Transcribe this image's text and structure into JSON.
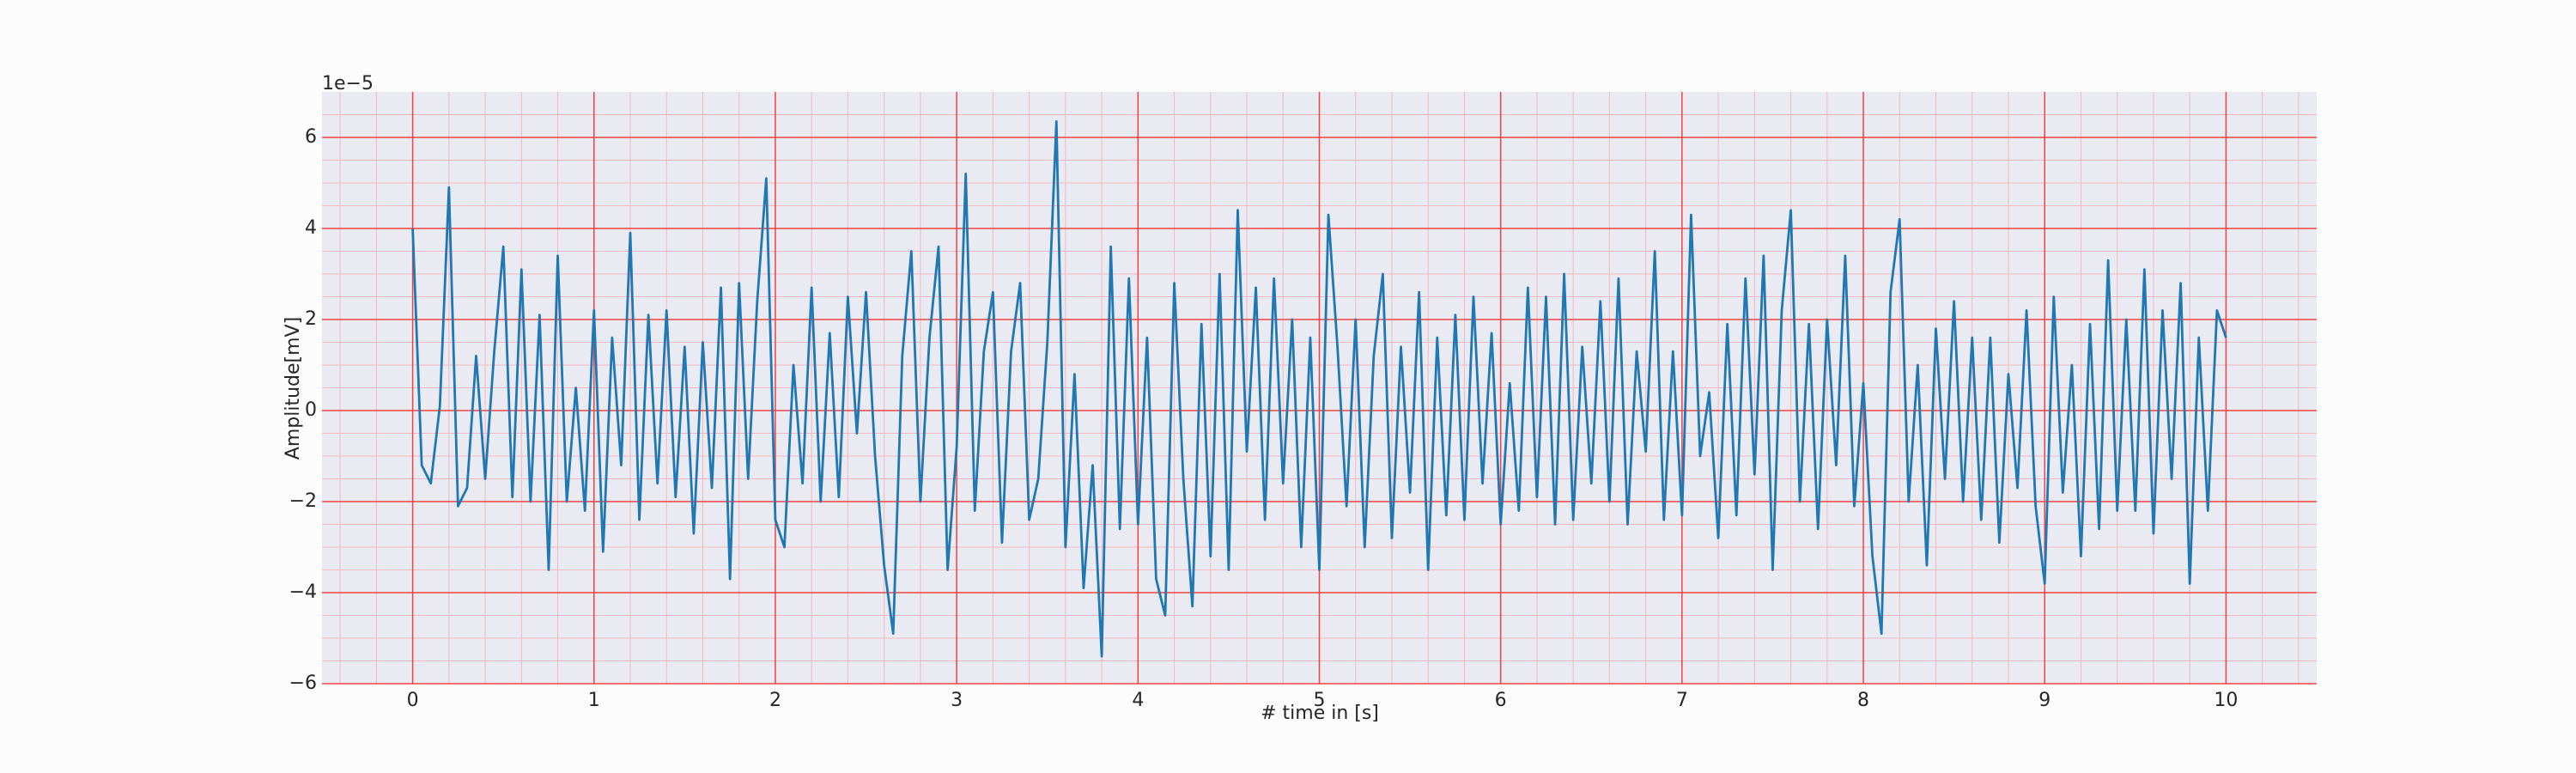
{
  "chart_data": {
    "type": "line",
    "xlabel": "# time in [s]",
    "ylabel": "Amplitude[mV]",
    "y_offset_label": "1e−5",
    "xlim": [
      -0.5,
      10.5
    ],
    "ylim": [
      -6,
      7
    ],
    "xticks": [
      0,
      1,
      2,
      3,
      4,
      5,
      6,
      7,
      8,
      9,
      10
    ],
    "yticks": [
      {
        "value": -6,
        "label": "−6"
      },
      {
        "value": -4,
        "label": "−4"
      },
      {
        "value": -2,
        "label": "−2"
      },
      0,
      2,
      4,
      6
    ],
    "xminorticks": [
      -0.4,
      -0.2,
      0.2,
      0.4,
      0.6,
      0.8,
      1.2,
      1.4,
      1.6,
      1.8,
      2.2,
      2.4,
      2.6,
      2.8,
      3.2,
      3.4,
      3.6,
      3.8,
      4.2,
      4.4,
      4.6,
      4.8,
      5.2,
      5.4,
      5.6,
      5.8,
      6.2,
      6.4,
      6.6,
      6.8,
      7.2,
      7.4,
      7.6,
      7.8,
      8.2,
      8.4,
      8.6,
      8.8,
      9.2,
      9.4,
      9.6,
      9.8,
      10.2,
      10.4
    ],
    "yminorticks": [
      -5.5,
      -5,
      -4.5,
      -3.5,
      -3,
      -2.5,
      -1.5,
      -1,
      -0.5,
      0.5,
      1,
      1.5,
      2.5,
      3,
      3.5,
      4.5,
      5,
      5.5,
      6.5
    ],
    "grid": true,
    "grid_color": "#ee4444",
    "minor_grid_color": "#f2b8c0",
    "background": "#eaeaf2",
    "series": [
      {
        "color": "#1f77b4",
        "x": [
          0,
          0.05,
          0.1,
          0.15,
          0.2,
          0.25,
          0.3,
          0.35,
          0.4,
          0.45,
          0.5,
          0.55,
          0.6,
          0.65,
          0.7,
          0.75,
          0.8,
          0.85,
          0.9,
          0.95,
          1,
          1.05,
          1.1,
          1.15,
          1.2,
          1.25,
          1.3,
          1.35,
          1.4,
          1.45,
          1.5,
          1.55,
          1.6,
          1.65,
          1.7,
          1.75,
          1.8,
          1.85,
          1.9,
          1.95,
          2,
          2.05,
          2.1,
          2.15,
          2.2,
          2.25,
          2.3,
          2.35,
          2.4,
          2.45,
          2.5,
          2.55,
          2.6,
          2.65,
          2.7,
          2.75,
          2.8,
          2.85,
          2.9,
          2.95,
          3,
          3.05,
          3.1,
          3.15,
          3.2,
          3.25,
          3.3,
          3.35,
          3.4,
          3.45,
          3.5,
          3.55,
          3.6,
          3.65,
          3.7,
          3.75,
          3.8,
          3.85,
          3.9,
          3.95,
          4,
          4.05,
          4.1,
          4.15,
          4.2,
          4.25,
          4.3,
          4.35,
          4.4,
          4.45,
          4.5,
          4.55,
          4.6,
          4.65,
          4.7,
          4.75,
          4.8,
          4.85,
          4.9,
          4.95,
          5,
          5.05,
          5.1,
          5.15,
          5.2,
          5.25,
          5.3,
          5.35,
          5.4,
          5.45,
          5.5,
          5.55,
          5.6,
          5.65,
          5.7,
          5.75,
          5.8,
          5.85,
          5.9,
          5.95,
          6,
          6.05,
          6.1,
          6.15,
          6.2,
          6.25,
          6.3,
          6.35,
          6.4,
          6.45,
          6.5,
          6.55,
          6.6,
          6.65,
          6.7,
          6.75,
          6.8,
          6.85,
          6.9,
          6.95,
          7,
          7.05,
          7.1,
          7.15,
          7.2,
          7.25,
          7.3,
          7.35,
          7.4,
          7.45,
          7.5,
          7.55,
          7.6,
          7.65,
          7.7,
          7.75,
          7.8,
          7.85,
          7.9,
          7.95,
          8,
          8.05,
          8.1,
          8.15,
          8.2,
          8.25,
          8.3,
          8.35,
          8.4,
          8.45,
          8.5,
          8.55,
          8.6,
          8.65,
          8.7,
          8.75,
          8.8,
          8.85,
          8.9,
          8.95,
          9,
          9.05,
          9.1,
          9.15,
          9.2,
          9.25,
          9.3,
          9.35,
          9.4,
          9.45,
          9.5,
          9.55,
          9.6,
          9.65,
          9.7,
          9.75,
          9.8,
          9.85,
          9.9,
          9.95,
          10
        ],
        "values": [
          4.0,
          -1.2,
          -1.6,
          0.1,
          4.9,
          -2.1,
          -1.7,
          1.2,
          -1.5,
          1.3,
          3.6,
          -1.9,
          3.1,
          -2.0,
          2.1,
          -3.5,
          3.4,
          -2.0,
          0.5,
          -2.2,
          2.2,
          -3.1,
          1.6,
          -1.2,
          3.9,
          -2.4,
          2.1,
          -1.6,
          2.2,
          -1.9,
          1.4,
          -2.7,
          1.5,
          -1.7,
          2.7,
          -3.7,
          2.8,
          -1.5,
          2.4,
          5.1,
          -2.4,
          -3.0,
          1.0,
          -1.6,
          2.7,
          -2.0,
          1.7,
          -1.9,
          2.5,
          -0.5,
          2.6,
          -1.0,
          -3.4,
          -4.9,
          1.2,
          3.5,
          -2.0,
          1.6,
          3.6,
          -3.5,
          -0.8,
          5.2,
          -2.2,
          1.3,
          2.6,
          -2.9,
          1.3,
          2.8,
          -2.4,
          -1.5,
          1.5,
          6.35,
          -3.0,
          0.8,
          -3.9,
          -1.2,
          -5.4,
          3.6,
          -2.6,
          2.9,
          -2.5,
          1.6,
          -3.7,
          -4.5,
          2.8,
          -1.5,
          -4.3,
          1.9,
          -3.2,
          3.0,
          -3.5,
          4.4,
          -0.9,
          2.7,
          -2.4,
          2.9,
          -1.6,
          2.0,
          -3.0,
          1.6,
          -3.5,
          4.3,
          1.4,
          -2.1,
          2.0,
          -3.0,
          1.2,
          3.0,
          -2.8,
          1.4,
          -1.8,
          2.6,
          -3.5,
          1.6,
          -2.3,
          2.1,
          -2.4,
          2.5,
          -1.6,
          1.7,
          -2.5,
          0.6,
          -2.2,
          2.7,
          -1.9,
          2.5,
          -2.5,
          3.0,
          -2.4,
          1.4,
          -1.6,
          2.4,
          -2.0,
          2.9,
          -2.5,
          1.3,
          -0.9,
          3.5,
          -2.4,
          1.3,
          -2.3,
          4.3,
          -1.0,
          0.4,
          -2.8,
          1.9,
          -2.3,
          2.9,
          -1.4,
          3.4,
          -3.5,
          2.2,
          4.4,
          -2.0,
          1.9,
          -2.6,
          2.0,
          -1.2,
          3.4,
          -2.1,
          0.6,
          -3.2,
          -4.9,
          2.6,
          4.2,
          -2.0,
          1.0,
          -3.4,
          1.8,
          -1.5,
          2.4,
          -2.0,
          1.6,
          -2.4,
          1.6,
          -2.9,
          0.8,
          -1.7,
          2.2,
          -2.1,
          -3.8,
          2.5,
          -1.8,
          1.0,
          -3.2,
          1.9,
          -2.6,
          3.3,
          -2.2,
          2.0,
          -2.2,
          3.1,
          -2.7,
          2.2,
          -1.5,
          2.8,
          -3.8,
          1.6,
          -2.2,
          2.2,
          1.6
        ]
      }
    ]
  }
}
